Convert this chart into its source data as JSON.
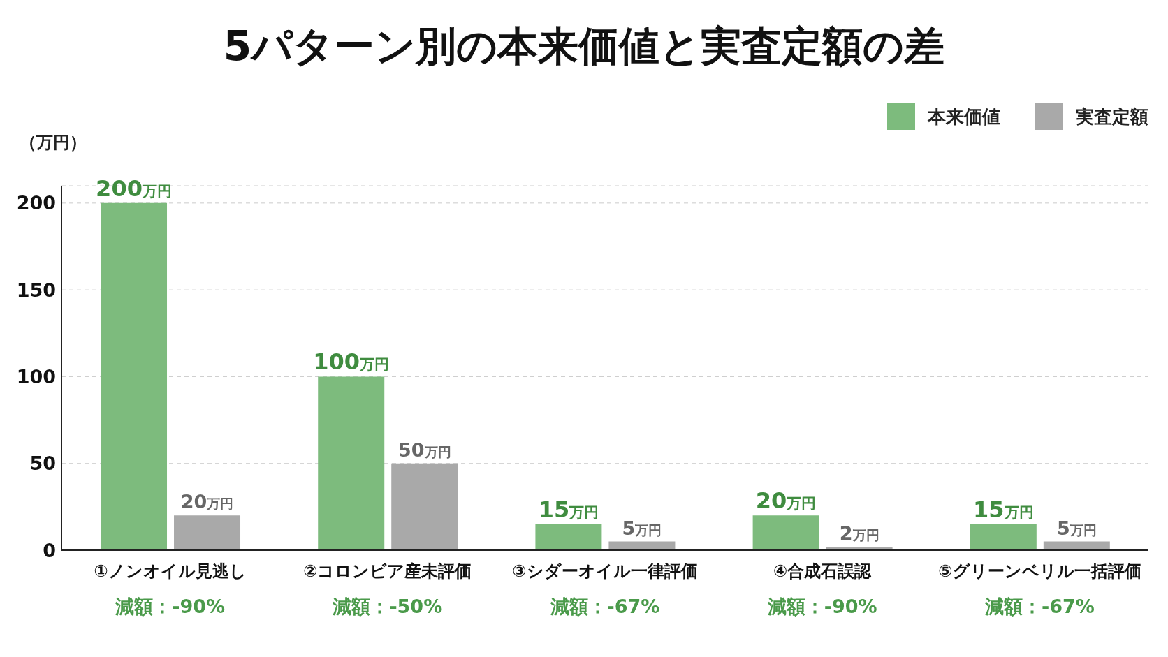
{
  "chart_data": {
    "type": "bar",
    "title": "5パターン別の本来価値と実査定額の差",
    "ylabel": "（万円）",
    "categories": [
      "①ノンオイル見逃し",
      "②コロンビア産未評価",
      "③シダーオイル一律評価",
      "④合成石誤認",
      "⑤グリーンベリル一括評価"
    ],
    "series": [
      {
        "name": "本来価値",
        "color": "#7dbb7d",
        "values": [
          200,
          100,
          15,
          20,
          15
        ],
        "value_labels": [
          "200万円",
          "100万円",
          "15万円",
          "20万円",
          "15万円"
        ]
      },
      {
        "name": "実査定額",
        "color": "#a9a9a9",
        "values": [
          20,
          50,
          5,
          2,
          5
        ],
        "value_labels": [
          "20万円",
          "50万円",
          "5万円",
          "2万円",
          "5万円"
        ]
      }
    ],
    "annotations": [
      "減額：-90%",
      "減額：-50%",
      "減額：-67%",
      "減額：-90%",
      "減額：-67%"
    ],
    "ylim": [
      0,
      210
    ],
    "yticks": [
      0,
      50,
      100,
      150,
      200
    ],
    "grid": "y",
    "legend": "top right"
  }
}
